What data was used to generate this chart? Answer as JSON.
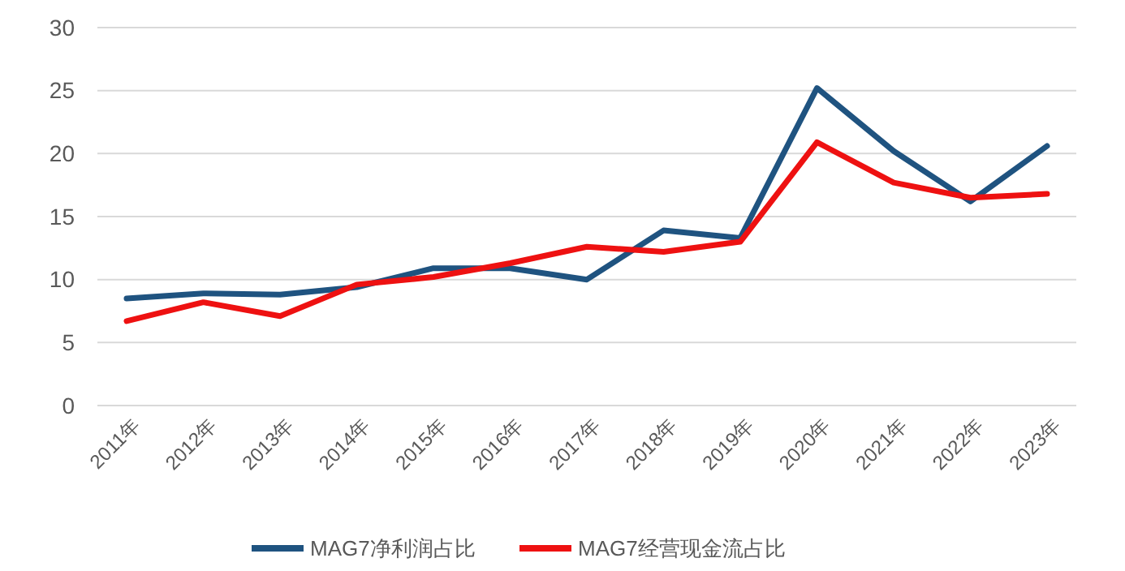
{
  "chart_data": {
    "type": "line",
    "categories": [
      "2011年",
      "2012年",
      "2013年",
      "2014年",
      "2015年",
      "2016年",
      "2017年",
      "2018年",
      "2019年",
      "2020年",
      "2021年",
      "2022年",
      "2023年"
    ],
    "series": [
      {
        "name": "MAG7净利润占比",
        "color": "#1f5380",
        "values": [
          8.5,
          8.9,
          8.8,
          9.4,
          10.9,
          10.9,
          10.0,
          13.9,
          13.3,
          25.2,
          20.2,
          16.2,
          20.6
        ]
      },
      {
        "name": "MAG7经营现金流占比",
        "color": "#ee1111",
        "values": [
          6.7,
          8.2,
          7.1,
          9.6,
          10.2,
          11.3,
          12.6,
          12.2,
          13.0,
          20.9,
          17.7,
          16.5,
          16.8
        ]
      }
    ],
    "ylim": [
      0,
      30
    ],
    "yticks": [
      0,
      5,
      10,
      15,
      20,
      25,
      30
    ],
    "grid": "y",
    "legend": "bottom",
    "marker": "none",
    "line_style": "solid"
  }
}
